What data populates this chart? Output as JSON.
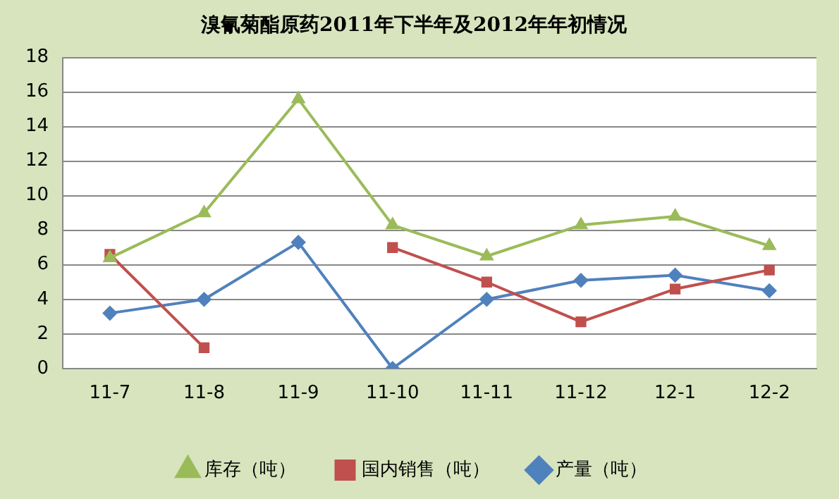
{
  "chart_data": {
    "type": "line",
    "title": "溴氰菊酯原药2011年下半年及2012年年初情况",
    "categories": [
      "11-7",
      "11-8",
      "11-9",
      "11-10",
      "11-11",
      "11-12",
      "12-1",
      "12-2"
    ],
    "series": [
      {
        "name": "产量（吨）",
        "color": "#4f81bd",
        "marker": "diamond",
        "values": [
          3.2,
          4.0,
          7.3,
          0,
          4.0,
          5.1,
          5.4,
          4.5
        ]
      },
      {
        "name": "国内销售（吨）",
        "color": "#c0504d",
        "marker": "square",
        "values": [
          6.6,
          1.2,
          null,
          7.0,
          5.0,
          2.7,
          4.6,
          5.7
        ]
      },
      {
        "name": "库存（吨）",
        "color": "#9bbb59",
        "marker": "triangle",
        "values": [
          6.4,
          9.0,
          15.6,
          8.3,
          6.5,
          8.3,
          8.8,
          7.1
        ]
      }
    ],
    "ylim": [
      0,
      18
    ],
    "yticks": [
      0,
      2,
      4,
      6,
      8,
      10,
      12,
      14,
      16,
      18
    ],
    "grid": "y",
    "legend": "bottom",
    "line_style": "solid"
  }
}
